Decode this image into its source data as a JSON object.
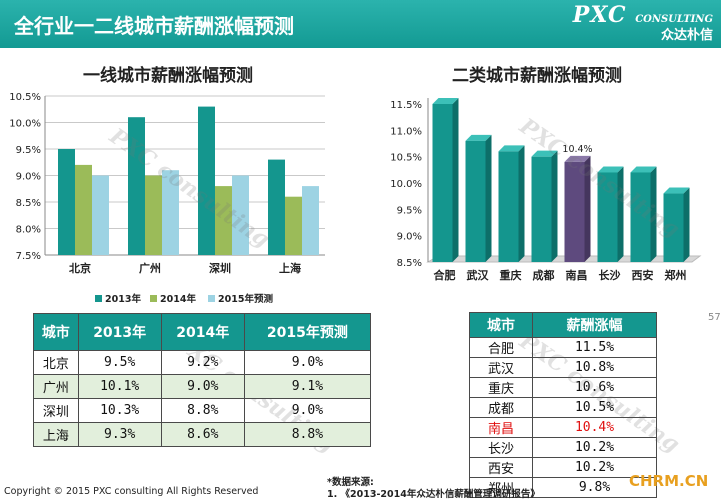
{
  "header": {
    "title": "全行业一二线城市薪酬涨幅预测",
    "brand_logo": "PXC",
    "brand_sub": "CONSULTING",
    "brand_cn": "众达朴信"
  },
  "chart_data": [
    {
      "type": "bar",
      "title": "一线城市薪酬涨幅预测",
      "categories": [
        "北京",
        "广州",
        "深圳",
        "上海"
      ],
      "series": [
        {
          "name": "2013年",
          "values": [
            9.5,
            10.1,
            10.3,
            9.3
          ]
        },
        {
          "name": "2014年",
          "values": [
            9.2,
            9.0,
            8.8,
            8.6
          ]
        },
        {
          "name": "2015年预测",
          "values": [
            9.0,
            9.1,
            9.0,
            8.8
          ]
        }
      ],
      "ylim": [
        7.5,
        10.5
      ],
      "yticks": [
        "7.5%",
        "8.0%",
        "8.5%",
        "9.0%",
        "9.5%",
        "10.0%",
        "10.5%"
      ],
      "grid": true,
      "legend": "bottom",
      "colors": [
        "#14968e",
        "#9bbb59",
        "#9dd3e3"
      ]
    },
    {
      "type": "bar",
      "title": "二类城市薪酬涨幅预测",
      "categories": [
        "合肥",
        "武汉",
        "重庆",
        "成都",
        "南昌",
        "长沙",
        "西安",
        "郑州"
      ],
      "values": [
        11.5,
        10.8,
        10.6,
        10.5,
        10.4,
        10.2,
        10.2,
        9.8
      ],
      "highlight_index": 4,
      "highlight_label": "10.4%",
      "ylim": [
        8.5,
        11.5
      ],
      "yticks": [
        "8.5%",
        "9.0%",
        "9.5%",
        "10.0%",
        "10.5%",
        "11.0%",
        "11.5%"
      ],
      "grid": false,
      "colors": {
        "bar": "#14968e",
        "highlight": "#5e4a7e"
      }
    }
  ],
  "table1": {
    "headers": [
      "城市",
      "2013年",
      "2014年",
      "2015年预测"
    ],
    "rows": [
      [
        "北京",
        "9.5%",
        "9.2%",
        "9.0%"
      ],
      [
        "广州",
        "10.1%",
        "9.0%",
        "9.1%"
      ],
      [
        "深圳",
        "10.3%",
        "8.8%",
        "9.0%"
      ],
      [
        "上海",
        "9.3%",
        "8.6%",
        "8.8%"
      ]
    ]
  },
  "table2": {
    "headers": [
      "城市",
      "薪酬涨幅"
    ],
    "rows": [
      [
        "合肥",
        "11.5%"
      ],
      [
        "武汉",
        "10.8%"
      ],
      [
        "重庆",
        "10.6%"
      ],
      [
        "成都",
        "10.5%"
      ],
      [
        "南昌",
        "10.4%"
      ],
      [
        "长沙",
        "10.2%"
      ],
      [
        "西安",
        "10.2%"
      ],
      [
        "郑州",
        "9.8%"
      ]
    ],
    "highlight_row": 4
  },
  "footer": {
    "copyright": "Copyright © 2015  PXC consulting All Rights Reserved",
    "source_label": "*数据来源:",
    "source_item": "1.    《2013-2014年众达朴信薪酬管理调研报告》",
    "site": "CHRM.CN",
    "page_number": "57"
  }
}
